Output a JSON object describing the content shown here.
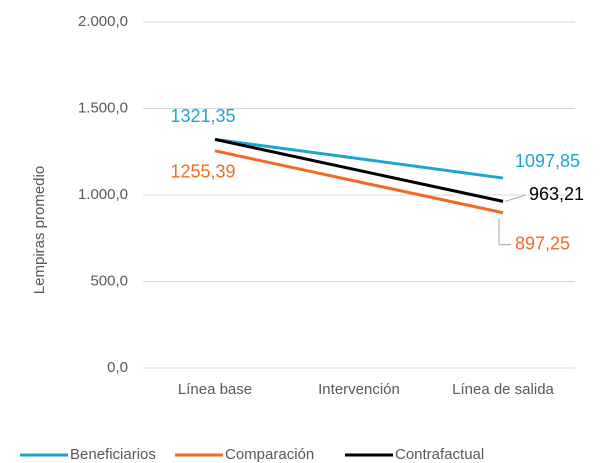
{
  "chart_data": {
    "type": "line",
    "y_label": "Lempiras promedio",
    "categories": [
      "Línea base",
      "Intervención",
      "Línea de salida"
    ],
    "ylim": [
      0,
      2000
    ],
    "yticks": [
      {
        "value": 0,
        "label": "0,0"
      },
      {
        "value": 500,
        "label": "500,0"
      },
      {
        "value": 1000,
        "label": "1.000,0"
      },
      {
        "value": 1500,
        "label": "1.500,0"
      },
      {
        "value": 2000,
        "label": "2.000,0"
      }
    ],
    "grid": true,
    "legend": "bottom",
    "series": [
      {
        "name": "Beneficiarios",
        "color": "#1ba6d2",
        "values": [
          1321.35,
          1210,
          1097.85
        ],
        "value_labels": [
          "1321,35",
          null,
          "1097,85"
        ]
      },
      {
        "name": "Comparación",
        "color": "#f26a21",
        "values": [
          1255.39,
          1076,
          897.25
        ],
        "value_labels": [
          "1255,39",
          null,
          "897,25"
        ]
      },
      {
        "name": "Contrafactual",
        "color": "#000000",
        "values": [
          1321.35,
          1142,
          963.21
        ],
        "value_labels": [
          null,
          null,
          "963,21"
        ]
      }
    ]
  }
}
